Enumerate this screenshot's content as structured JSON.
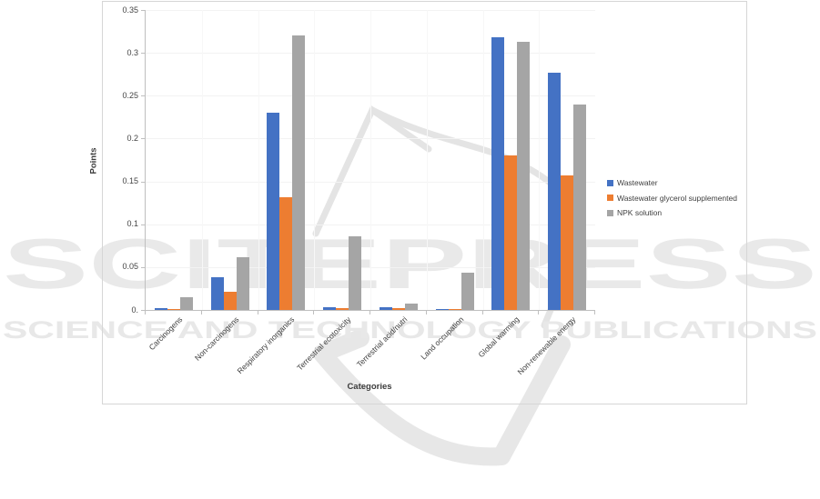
{
  "watermark": {
    "brand": "SCITEPRESS",
    "subtitle": "SCIENCE AND TECHNOLOGY PUBLICATIONS",
    "text_color": "#e9e9e9",
    "swoosh_color": "#e5e5e5"
  },
  "chart_data": {
    "type": "bar",
    "title": "",
    "xlabel": "Categories",
    "ylabel": "Points",
    "ylim": [
      0,
      0.35
    ],
    "ytick_step": 0.05,
    "ytick_labels": [
      "0.35",
      "0.3",
      "0.25",
      "0.2",
      "0.15",
      "0.1",
      "0.05",
      "0."
    ],
    "categories": [
      "Carcinogens",
      "Non-carcinogens",
      "Respiratory inorganics",
      "Terrestrial ecotoxicity",
      "Terrestrial acid/nutri",
      "Land occupation",
      "Global warming",
      "Non-renewable energy"
    ],
    "series": [
      {
        "name": "Wastewater",
        "color": "#4472C4",
        "values": [
          0.002,
          0.038,
          0.23,
          0.003,
          0.003,
          0.001,
          0.318,
          0.277
        ]
      },
      {
        "name": "Wastewater glycerol supplemented",
        "color": "#ED7D31",
        "values": [
          0.001,
          0.021,
          0.131,
          0.002,
          0.002,
          0.001,
          0.18,
          0.157
        ]
      },
      {
        "name": "NPK solution",
        "color": "#A5A5A5",
        "values": [
          0.015,
          0.062,
          0.32,
          0.086,
          0.007,
          0.043,
          0.313,
          0.24
        ]
      }
    ],
    "legend_position": "right",
    "grid": "faint horizontal and vertical gridlines"
  },
  "colors": {
    "axis_line": "#bfbfbf",
    "tick_text": "#444444",
    "frame_border": "#d6d6d6"
  }
}
